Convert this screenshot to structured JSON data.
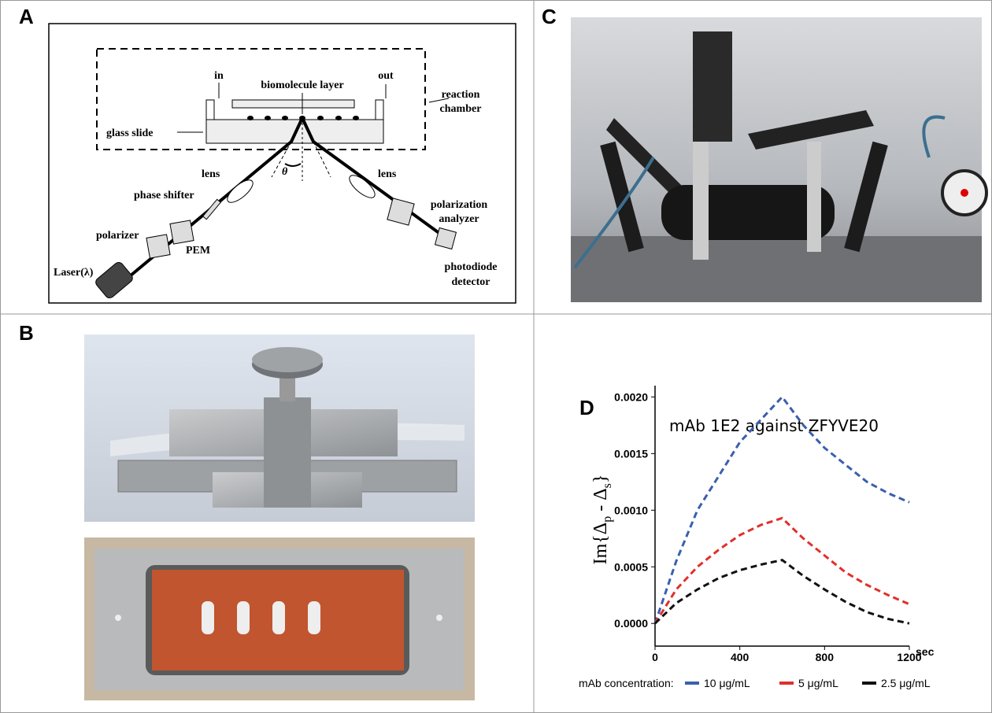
{
  "panel_labels": [
    "A",
    "B",
    "C",
    "D"
  ],
  "diagram_labels": [
    "in",
    "biomolecule layer",
    "out",
    "reaction",
    "chamber",
    "glass slide",
    "lens",
    "θ",
    "lens",
    "phase shifter",
    "polarization",
    "analyzer",
    "polarizer",
    "PEM",
    "Laser(λ)",
    "photodiode",
    "detector"
  ],
  "chart_data": {
    "type": "line",
    "title": "mAb 1E2 against ZFYVE20",
    "ylabel_parts": [
      "Im{Δ",
      "p",
      " - Δ",
      "s",
      "}"
    ],
    "xunit": "sec",
    "legend_title": "mAb concentration:",
    "x": [
      0,
      100,
      200,
      300,
      400,
      500,
      600,
      700,
      800,
      900,
      1000,
      1100,
      1200
    ],
    "xlim": [
      0,
      1200
    ],
    "xticks": [
      0,
      400,
      800,
      1200
    ],
    "ylim": [
      -0.0002,
      0.0021
    ],
    "yticks": [
      {
        "value": 0,
        "label": "0.0000"
      },
      {
        "value": 0.0005,
        "label": "0.0005"
      },
      {
        "value": 0.001,
        "label": "0.0010"
      },
      {
        "value": 0.0015,
        "label": "0.0015"
      },
      {
        "value": 0.002,
        "label": "0.0020"
      }
    ],
    "series": [
      {
        "name": "10 μg/mL",
        "color": "#3a5fad",
        "values": [
          0,
          0.00055,
          0.001,
          0.0013,
          0.0016,
          0.0018,
          0.002,
          0.00175,
          0.00155,
          0.0014,
          0.00125,
          0.00115,
          0.00107
        ]
      },
      {
        "name": "5 μg/mL",
        "color": "#e0302a",
        "values": [
          0,
          0.0003,
          0.0005,
          0.00065,
          0.00078,
          0.00087,
          0.00093,
          0.00075,
          0.0006,
          0.00045,
          0.00034,
          0.00025,
          0.00017
        ]
      },
      {
        "name": "2.5 μg/mL",
        "color": "#111111",
        "values": [
          0,
          0.00018,
          0.0003,
          0.0004,
          0.00047,
          0.00052,
          0.00056,
          0.00042,
          0.0003,
          0.00019,
          0.0001,
          4e-05,
          0
        ]
      }
    ]
  }
}
